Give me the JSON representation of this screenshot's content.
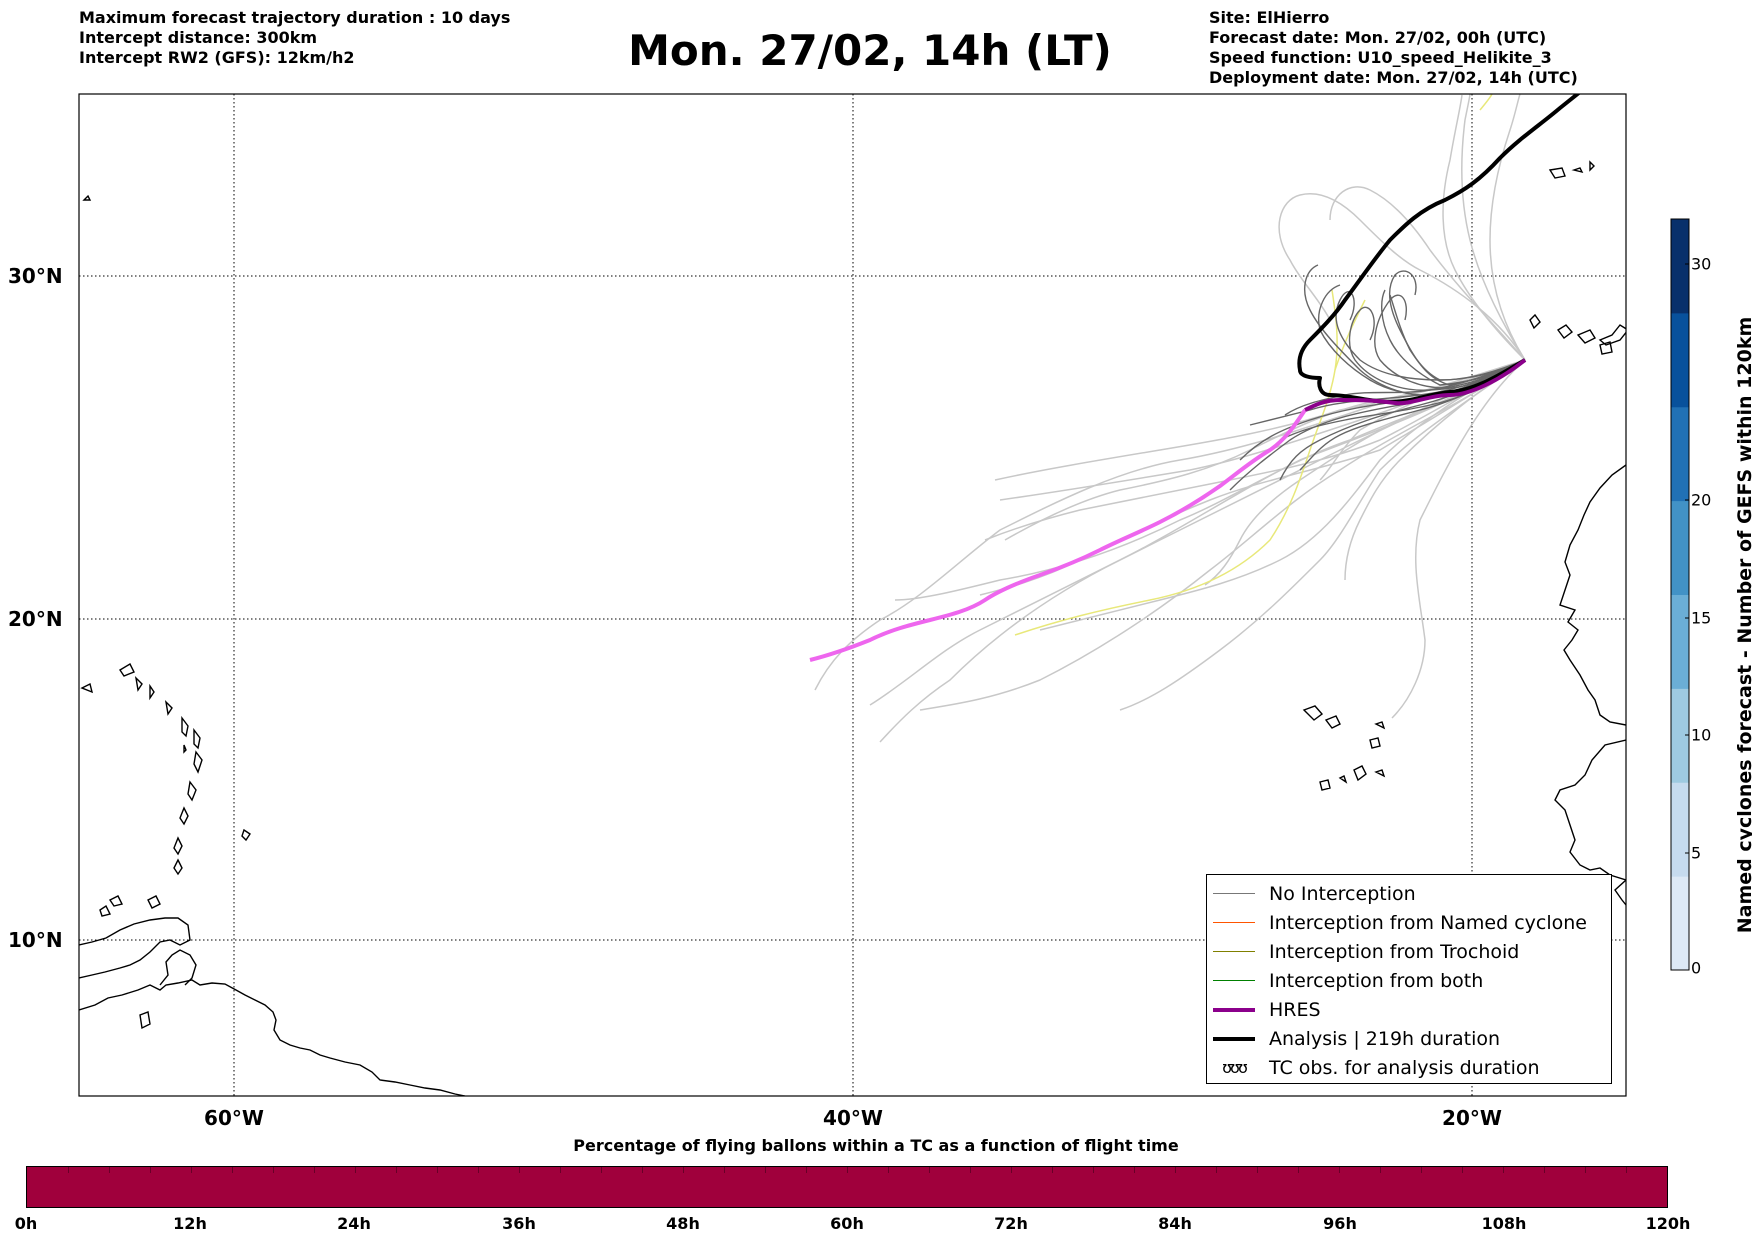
{
  "header": {
    "left_lines": [
      "Maximum forecast trajectory duration : 10 days",
      "Intercept distance: 300km",
      "Intercept RW2 (GFS):  12km/h2"
    ],
    "title": "Mon. 27/02, 14h (LT)",
    "right_lines": [
      "Site: ElHierro",
      "Forecast date: Mon. 27/02, 00h (UTC)",
      "Speed function: U10_speed_Helikite_3",
      "Deployment date: Mon. 27/02, 14h (UTC)"
    ]
  },
  "map": {
    "lon_labels": [
      "60°W",
      "40°W",
      "20°W"
    ],
    "lat_labels": [
      "30°N",
      "20°N",
      "10°N"
    ],
    "colors": {
      "ensemble_light": "#c8c8c8",
      "ensemble_dark": "#666666",
      "hres": "#ee66ee",
      "hres_dark": "#8b008b",
      "analysis": "#000000",
      "trochoid": "#e8e87a"
    }
  },
  "legend": {
    "items": [
      {
        "label": "No Interception",
        "color": "#777777",
        "width": 1
      },
      {
        "label": "Interception from Named cyclone",
        "color": "#ff5500",
        "width": 1
      },
      {
        "label": "Interception from Trochoid",
        "color": "#808000",
        "width": 1
      },
      {
        "label": "Interception from both",
        "color": "#008000",
        "width": 1
      },
      {
        "label": "HRES",
        "color": "#8b008b",
        "width": 4
      },
      {
        "label": "Analysis | 219h duration",
        "color": "#000000",
        "width": 4
      },
      {
        "label": "TC obs. for analysis duration",
        "symbol": "ʊʊʊ"
      }
    ]
  },
  "colorbar": {
    "title": "Named cyclones forecast - Number of GEFS within 120km",
    "ticks": [
      "0",
      "5",
      "10",
      "15",
      "20",
      "30"
    ],
    "colors": [
      "#dde9f6",
      "#c6dbef",
      "#9ecae1",
      "#6baed6",
      "#4292c6",
      "#2171b5",
      "#08519c",
      "#08306b"
    ]
  },
  "timebar": {
    "title": "Percentage of flying ballons within a TC as a function of flight time",
    "color": "#a0003c",
    "tick_labels": [
      "0h",
      "12h",
      "24h",
      "36h",
      "48h",
      "60h",
      "72h",
      "84h",
      "96h",
      "108h",
      "120h"
    ]
  }
}
